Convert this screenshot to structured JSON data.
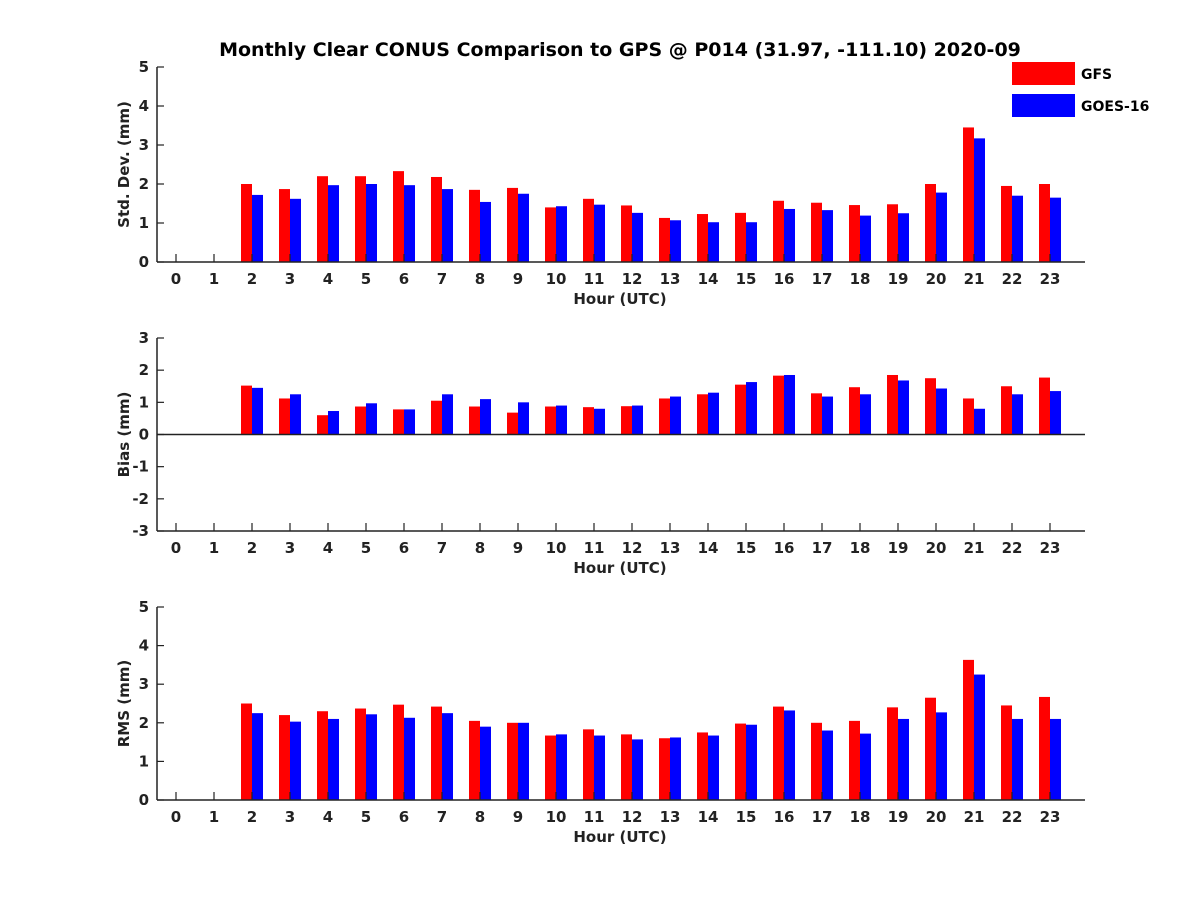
{
  "title": "Monthly Clear CONUS Comparison to GPS @ P014 (31.97, -111.10) 2020-09",
  "legend": {
    "placement": "top-right",
    "items": [
      {
        "name": "GFS",
        "color": "#ff0000"
      },
      {
        "name": "GOES-16",
        "color": "#0000ff"
      }
    ]
  },
  "chart_data": [
    {
      "type": "bar",
      "xlabel": "Hour (UTC)",
      "ylabel": "Std. Dev. (mm)",
      "ylim": [
        0,
        5
      ],
      "yticks": [
        0,
        1,
        2,
        3,
        4,
        5
      ],
      "categories": [
        "0",
        "1",
        "2",
        "3",
        "4",
        "5",
        "6",
        "7",
        "8",
        "9",
        "10",
        "11",
        "12",
        "13",
        "14",
        "15",
        "16",
        "17",
        "18",
        "19",
        "20",
        "21",
        "22",
        "23"
      ],
      "series": [
        {
          "name": "GFS",
          "values": [
            null,
            null,
            2.0,
            1.87,
            2.2,
            2.2,
            2.33,
            2.18,
            1.85,
            1.9,
            1.4,
            1.62,
            1.45,
            1.13,
            1.23,
            1.26,
            1.57,
            1.52,
            1.46,
            1.48,
            2.0,
            3.45,
            1.95,
            2.0
          ]
        },
        {
          "name": "GOES-16",
          "values": [
            null,
            null,
            1.72,
            1.62,
            1.97,
            2.0,
            1.97,
            1.87,
            1.54,
            1.75,
            1.43,
            1.47,
            1.26,
            1.07,
            1.02,
            1.02,
            1.36,
            1.33,
            1.19,
            1.25,
            1.78,
            3.17,
            1.7,
            1.65
          ]
        }
      ]
    },
    {
      "type": "bar",
      "xlabel": "Hour (UTC)",
      "ylabel": "Bias (mm)",
      "ylim": [
        -3,
        3
      ],
      "yticks": [
        -3,
        -2,
        -1,
        0,
        1,
        2,
        3
      ],
      "categories": [
        "0",
        "1",
        "2",
        "3",
        "4",
        "5",
        "6",
        "7",
        "8",
        "9",
        "10",
        "11",
        "12",
        "13",
        "14",
        "15",
        "16",
        "17",
        "18",
        "19",
        "20",
        "21",
        "22",
        "23"
      ],
      "series": [
        {
          "name": "GFS",
          "values": [
            null,
            null,
            1.52,
            1.12,
            0.6,
            0.87,
            0.78,
            1.05,
            0.87,
            0.68,
            0.87,
            0.85,
            0.88,
            1.12,
            1.25,
            1.55,
            1.83,
            1.28,
            1.47,
            1.85,
            1.75,
            1.12,
            1.5,
            1.77
          ]
        },
        {
          "name": "GOES-16",
          "values": [
            null,
            null,
            1.45,
            1.25,
            0.73,
            0.97,
            0.78,
            1.25,
            1.1,
            1.0,
            0.9,
            0.8,
            0.9,
            1.18,
            1.3,
            1.63,
            1.85,
            1.18,
            1.25,
            1.68,
            1.43,
            0.8,
            1.25,
            1.35
          ]
        }
      ]
    },
    {
      "type": "bar",
      "xlabel": "Hour (UTC)",
      "ylabel": "RMS (mm)",
      "ylim": [
        0,
        5
      ],
      "yticks": [
        0,
        1,
        2,
        3,
        4,
        5
      ],
      "categories": [
        "0",
        "1",
        "2",
        "3",
        "4",
        "5",
        "6",
        "7",
        "8",
        "9",
        "10",
        "11",
        "12",
        "13",
        "14",
        "15",
        "16",
        "17",
        "18",
        "19",
        "20",
        "21",
        "22",
        "23"
      ],
      "series": [
        {
          "name": "GFS",
          "values": [
            null,
            null,
            2.5,
            2.2,
            2.3,
            2.37,
            2.47,
            2.42,
            2.05,
            2.0,
            1.67,
            1.83,
            1.7,
            1.6,
            1.75,
            1.98,
            2.42,
            2.0,
            2.05,
            2.4,
            2.65,
            3.63,
            2.45,
            2.67
          ]
        },
        {
          "name": "GOES-16",
          "values": [
            null,
            null,
            2.25,
            2.03,
            2.1,
            2.22,
            2.13,
            2.25,
            1.9,
            2.0,
            1.7,
            1.67,
            1.57,
            1.62,
            1.67,
            1.95,
            2.32,
            1.8,
            1.72,
            2.1,
            2.27,
            3.25,
            2.1,
            2.1
          ]
        }
      ]
    }
  ]
}
